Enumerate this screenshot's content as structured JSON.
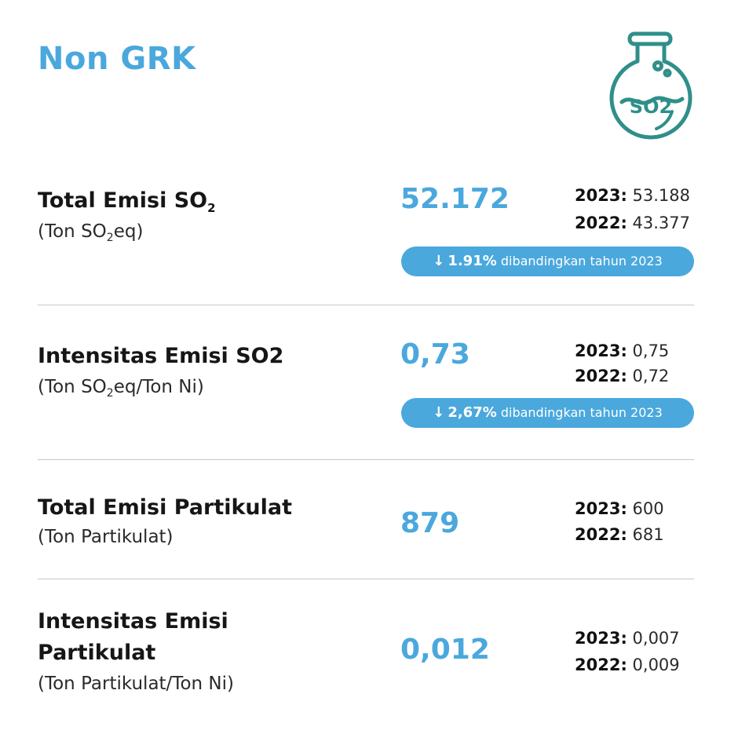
{
  "header": {
    "title": "Non GRK",
    "icon": "flask-so2-icon",
    "icon_label": "SO2",
    "accent_color": "#4aa8dd",
    "icon_color": "#2f8f8a"
  },
  "metrics": [
    {
      "label": "Total Emisi SO",
      "label_sub": "2",
      "unit_pre": "(Ton SO",
      "unit_sub": "2",
      "unit_post": "eq)",
      "value": "52.172",
      "y2023_key": "2023:",
      "y2023_val": " 53.188",
      "y2022_key": "2022:",
      "y2022_val": " 43.377",
      "change_arrow": "↓",
      "change_pct": "1.91%",
      "change_text": " dibandingkan tahun  2023"
    },
    {
      "label": "Intensitas Emisi SO2",
      "unit_pre": "(Ton SO",
      "unit_sub": "2",
      "unit_post": "eq/Ton Ni)",
      "value": "0,73",
      "y2023_key": "2023:",
      "y2023_val": " 0,75",
      "y2022_key": "2022:",
      "y2022_val": " 0,72",
      "change_arrow": "↓",
      "change_pct": "2,67%",
      "change_text": " dibandingkan tahun  2023"
    },
    {
      "label": "Total Emisi Partikulat",
      "unit": "(Ton Partikulat)",
      "value": "879",
      "y2023_key": "2023:",
      "y2023_val": " 600",
      "y2022_key": "2022:",
      "y2022_val": " 681"
    },
    {
      "label_line1": "Intensitas Emisi",
      "label_line2": "Partikulat",
      "unit": "(Ton Partikulat/Ton Ni)",
      "value": "0,012",
      "y2023_key": "2023:",
      "y2023_val": " 0,007",
      "y2022_key": "2022:",
      "y2022_val": " 0,009"
    }
  ]
}
